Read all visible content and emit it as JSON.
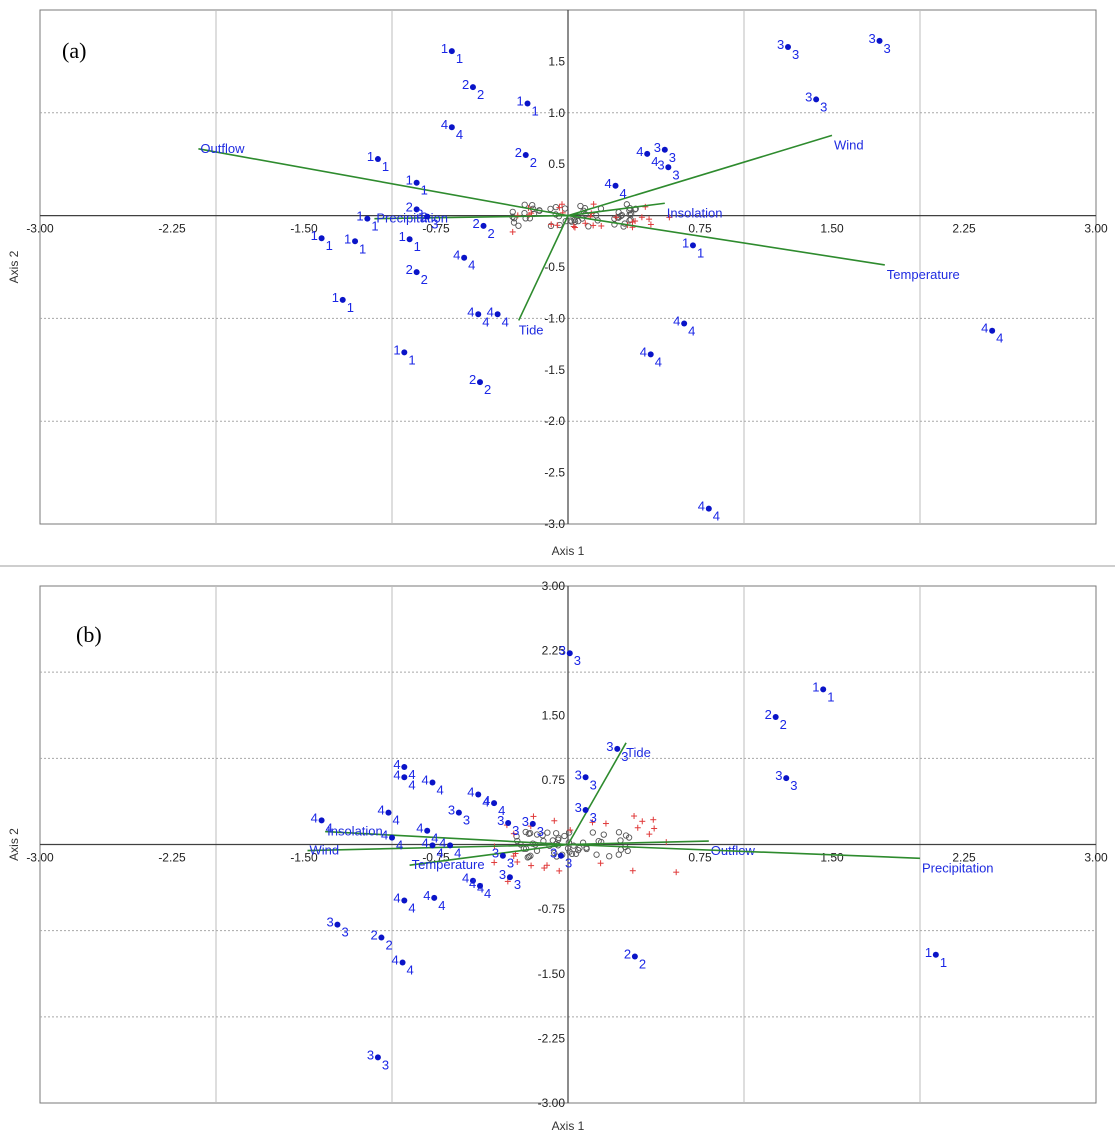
{
  "colors": {
    "point": "#0a14c8",
    "label": "#1a26e6",
    "vector": "#2e8b2e",
    "vector_label": "#1f2be0",
    "cross": "#e03a3a",
    "circle": "#555555"
  },
  "chart_data": [
    {
      "type": "scatter",
      "panel_label": "(a)",
      "xlabel": "Axis 1",
      "ylabel": "Axis 2",
      "xlim": [
        -3.0,
        3.0
      ],
      "ylim": [
        -3.0,
        2.0
      ],
      "x_ticks": [
        "-3.00",
        "-2.25",
        "-1.50",
        "-0.75",
        "0.75",
        "1.50",
        "2.25",
        "3.00"
      ],
      "y_ticks": [
        "1.5",
        "1.0",
        "0.5",
        "-0.5",
        "-1.0",
        "-1.5",
        "-2.0",
        "-2.5",
        "-3.0"
      ],
      "grid": true,
      "vectors": [
        {
          "name": "Outflow",
          "x": -2.1,
          "y": 0.65
        },
        {
          "name": "Precipitation",
          "x": -1.1,
          "y": -0.03
        },
        {
          "name": "Wind",
          "x": 1.5,
          "y": 0.78
        },
        {
          "name": "Insolation",
          "x": 0.55,
          "y": 0.12
        },
        {
          "name": "Temperature",
          "x": 1.8,
          "y": -0.48
        },
        {
          "name": "Tide",
          "x": -0.28,
          "y": -1.02
        }
      ],
      "labeled_points": [
        {
          "label": "1",
          "x": -0.66,
          "y": 1.6
        },
        {
          "label": "2",
          "x": -0.54,
          "y": 1.25
        },
        {
          "label": "1",
          "x": -0.23,
          "y": 1.09
        },
        {
          "label": "4",
          "x": -0.66,
          "y": 0.86
        },
        {
          "label": "2",
          "x": -0.24,
          "y": 0.59
        },
        {
          "label": "1",
          "x": -1.08,
          "y": 0.55
        },
        {
          "label": "1",
          "x": -0.86,
          "y": 0.32
        },
        {
          "label": "2",
          "x": -0.86,
          "y": 0.06
        },
        {
          "label": "3",
          "x": -0.8,
          "y": -0.01
        },
        {
          "label": "1",
          "x": -1.14,
          "y": -0.03
        },
        {
          "label": "2",
          "x": -0.48,
          "y": -0.1
        },
        {
          "label": "1",
          "x": -0.9,
          "y": -0.23
        },
        {
          "label": "1",
          "x": -1.4,
          "y": -0.22
        },
        {
          "label": "1",
          "x": -1.21,
          "y": -0.25
        },
        {
          "label": "2",
          "x": -0.86,
          "y": -0.55
        },
        {
          "label": "4",
          "x": -0.59,
          "y": -0.41
        },
        {
          "label": "1",
          "x": -1.28,
          "y": -0.82
        },
        {
          "label": "4",
          "x": -0.51,
          "y": -0.96
        },
        {
          "label": "4",
          "x": -0.4,
          "y": -0.96
        },
        {
          "label": "1",
          "x": -0.93,
          "y": -1.33
        },
        {
          "label": "2",
          "x": -0.5,
          "y": -1.62
        },
        {
          "label": "3",
          "x": 0.55,
          "y": 0.64
        },
        {
          "label": "4",
          "x": 0.45,
          "y": 0.6
        },
        {
          "label": "3",
          "x": 0.57,
          "y": 0.47
        },
        {
          "label": "4",
          "x": 0.27,
          "y": 0.29
        },
        {
          "label": "1",
          "x": 0.71,
          "y": -0.29
        },
        {
          "label": "4",
          "x": 0.66,
          "y": -1.05
        },
        {
          "label": "4",
          "x": 0.47,
          "y": -1.35
        },
        {
          "label": "4",
          "x": 0.8,
          "y": -2.85
        },
        {
          "label": "3",
          "x": 1.25,
          "y": 1.64
        },
        {
          "label": "3",
          "x": 1.41,
          "y": 1.13
        },
        {
          "label": "3",
          "x": 1.77,
          "y": 1.7
        },
        {
          "label": "4",
          "x": 2.41,
          "y": -1.12
        }
      ]
    },
    {
      "type": "scatter",
      "panel_label": "(b)",
      "xlabel": "Axis 1",
      "ylabel": "Axis 2",
      "xlim": [
        -3.0,
        3.0
      ],
      "ylim": [
        -3.0,
        3.0
      ],
      "x_ticks": [
        "-3.00",
        "-2.25",
        "-1.50",
        "-0.75",
        "0.75",
        "1.50",
        "2.25",
        "3.00"
      ],
      "y_ticks": [
        "3.00",
        "2.25",
        "1.50",
        "0.75",
        "-0.75",
        "-1.50",
        "-2.25",
        "-3.00"
      ],
      "grid": true,
      "vectors": [
        {
          "name": "Tide",
          "x": 0.33,
          "y": 1.18
        },
        {
          "name": "Insolation",
          "x": -1.38,
          "y": 0.15
        },
        {
          "name": "Wind",
          "x": -1.48,
          "y": -0.07
        },
        {
          "name": "Temperature",
          "x": -0.9,
          "y": -0.24
        },
        {
          "name": "Outflow",
          "x": 0.8,
          "y": 0.04
        },
        {
          "name": "Precipitation",
          "x": 2.0,
          "y": -0.16
        }
      ],
      "labeled_points": [
        {
          "label": "3",
          "x": 0.01,
          "y": 2.22
        },
        {
          "label": "3",
          "x": 0.28,
          "y": 1.11
        },
        {
          "label": "3",
          "x": 0.1,
          "y": 0.78
        },
        {
          "label": "3",
          "x": 0.1,
          "y": 0.4
        },
        {
          "label": "3",
          "x": -0.34,
          "y": 0.25
        },
        {
          "label": "3",
          "x": -0.2,
          "y": 0.24
        },
        {
          "label": "3",
          "x": -0.37,
          "y": -0.13
        },
        {
          "label": "3",
          "x": -0.33,
          "y": -0.38
        },
        {
          "label": "3",
          "x": -0.04,
          "y": -0.13
        },
        {
          "label": "3",
          "x": -0.62,
          "y": 0.37
        },
        {
          "label": "3",
          "x": -1.31,
          "y": -0.93
        },
        {
          "label": "3",
          "x": 1.24,
          "y": 0.77
        },
        {
          "label": "3",
          "x": -1.08,
          "y": -2.47
        },
        {
          "label": "1",
          "x": 1.45,
          "y": 1.8
        },
        {
          "label": "2",
          "x": 1.18,
          "y": 1.48
        },
        {
          "label": "2",
          "x": 0.38,
          "y": -1.3
        },
        {
          "label": "1",
          "x": 2.09,
          "y": -1.28
        },
        {
          "label": "2",
          "x": -1.06,
          "y": -1.08
        },
        {
          "label": "4",
          "x": -0.93,
          "y": 0.9
        },
        {
          "label": "4",
          "x": -0.93,
          "y": 0.78
        },
        {
          "label": "4",
          "x": -0.77,
          "y": 0.72
        },
        {
          "label": "4",
          "x": -0.42,
          "y": 0.48
        },
        {
          "label": "4",
          "x": -0.51,
          "y": 0.58
        },
        {
          "label": "4",
          "x": -1.02,
          "y": 0.37
        },
        {
          "label": "4",
          "x": -1.4,
          "y": 0.28
        },
        {
          "label": "4",
          "x": -0.8,
          "y": 0.16
        },
        {
          "label": "4",
          "x": -1.0,
          "y": 0.08
        },
        {
          "label": "4",
          "x": -0.77,
          "y": -0.01
        },
        {
          "label": "4",
          "x": -0.67,
          "y": -0.01
        },
        {
          "label": "4",
          "x": -0.54,
          "y": -0.42
        },
        {
          "label": "4",
          "x": -0.93,
          "y": -0.65
        },
        {
          "label": "4",
          "x": -0.76,
          "y": -0.62
        },
        {
          "label": "4",
          "x": -0.5,
          "y": -0.48
        },
        {
          "label": "4",
          "x": -0.94,
          "y": -1.37
        }
      ]
    }
  ]
}
